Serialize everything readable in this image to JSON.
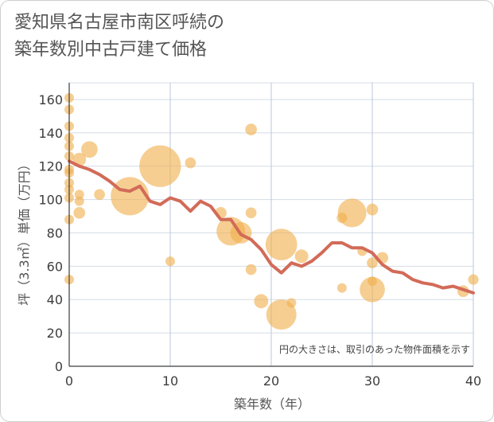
{
  "chart_data": {
    "type": "scatter",
    "title": "愛知県名古屋市南区呼続の\n築年数別中古戸建て価格",
    "xlabel": "築年数（年）",
    "ylabel": "坪（3.3㎡）単価（万円）",
    "xlim": [
      0,
      40
    ],
    "ylim": [
      0,
      170
    ],
    "xticks": [
      0,
      10,
      20,
      30,
      40
    ],
    "yticks": [
      0,
      20,
      40,
      60,
      80,
      100,
      120,
      140,
      160
    ],
    "grid": true,
    "note": "円の大きさは、取引のあった物件面積を示す",
    "bubble_color": "#f0b04f",
    "line_color": "#d26b58",
    "points": [
      {
        "x": 0,
        "y": 161,
        "size": 1
      },
      {
        "x": 0,
        "y": 154,
        "size": 1
      },
      {
        "x": 0,
        "y": 144,
        "size": 1
      },
      {
        "x": 0,
        "y": 137,
        "size": 1
      },
      {
        "x": 0,
        "y": 132,
        "size": 1
      },
      {
        "x": 0,
        "y": 126,
        "size": 1
      },
      {
        "x": 0,
        "y": 118,
        "size": 1
      },
      {
        "x": 0,
        "y": 116,
        "size": 1
      },
      {
        "x": 0,
        "y": 110,
        "size": 1
      },
      {
        "x": 0,
        "y": 106,
        "size": 1
      },
      {
        "x": 0,
        "y": 101,
        "size": 1
      },
      {
        "x": 0,
        "y": 88,
        "size": 1
      },
      {
        "x": 0,
        "y": 52,
        "size": 1
      },
      {
        "x": 1,
        "y": 124,
        "size": 2
      },
      {
        "x": 1,
        "y": 103,
        "size": 1
      },
      {
        "x": 1,
        "y": 99,
        "size": 1
      },
      {
        "x": 1,
        "y": 92,
        "size": 1.5
      },
      {
        "x": 2,
        "y": 130,
        "size": 3
      },
      {
        "x": 3,
        "y": 103,
        "size": 1.3
      },
      {
        "x": 6,
        "y": 102,
        "size": 16
      },
      {
        "x": 9,
        "y": 120,
        "size": 19
      },
      {
        "x": 10,
        "y": 63,
        "size": 1
      },
      {
        "x": 12,
        "y": 122,
        "size": 1.3
      },
      {
        "x": 15,
        "y": 92,
        "size": 1.5
      },
      {
        "x": 16,
        "y": 81,
        "size": 9
      },
      {
        "x": 17,
        "y": 80,
        "size": 5
      },
      {
        "x": 18,
        "y": 142,
        "size": 1.5
      },
      {
        "x": 18,
        "y": 92,
        "size": 1.3
      },
      {
        "x": 18,
        "y": 58,
        "size": 1.3
      },
      {
        "x": 19,
        "y": 39,
        "size": 2.2
      },
      {
        "x": 21,
        "y": 73,
        "size": 11
      },
      {
        "x": 21,
        "y": 31,
        "size": 10
      },
      {
        "x": 22,
        "y": 38,
        "size": 1
      },
      {
        "x": 23,
        "y": 66,
        "size": 2
      },
      {
        "x": 27,
        "y": 89,
        "size": 1.2
      },
      {
        "x": 27,
        "y": 47,
        "size": 1
      },
      {
        "x": 28,
        "y": 92,
        "size": 9
      },
      {
        "x": 29,
        "y": 69,
        "size": 1
      },
      {
        "x": 30,
        "y": 94,
        "size": 1.5
      },
      {
        "x": 30,
        "y": 62,
        "size": 1.3
      },
      {
        "x": 30,
        "y": 51,
        "size": 1
      },
      {
        "x": 30,
        "y": 46,
        "size": 7
      },
      {
        "x": 31,
        "y": 65,
        "size": 1.5
      },
      {
        "x": 39,
        "y": 45,
        "size": 1.5
      },
      {
        "x": 40,
        "y": 52,
        "size": 1.2
      }
    ],
    "average_line": {
      "x": [
        0,
        1,
        2,
        3,
        4,
        5,
        6,
        7,
        8,
        9,
        10,
        11,
        12,
        13,
        14,
        15,
        16,
        17,
        18,
        19,
        20,
        21,
        22,
        23,
        24,
        25,
        26,
        27,
        28,
        29,
        30,
        31,
        32,
        33,
        34,
        35,
        36,
        37,
        38,
        39,
        40
      ],
      "y": [
        123,
        120,
        118,
        115,
        111,
        106,
        105,
        108,
        99,
        97,
        101,
        99,
        93,
        99,
        96,
        88,
        88,
        79,
        76,
        70,
        61,
        56,
        62,
        60,
        63,
        68,
        74,
        74,
        71,
        71,
        68,
        61,
        57,
        56,
        52,
        50,
        49,
        47,
        48,
        46,
        44
      ]
    }
  }
}
